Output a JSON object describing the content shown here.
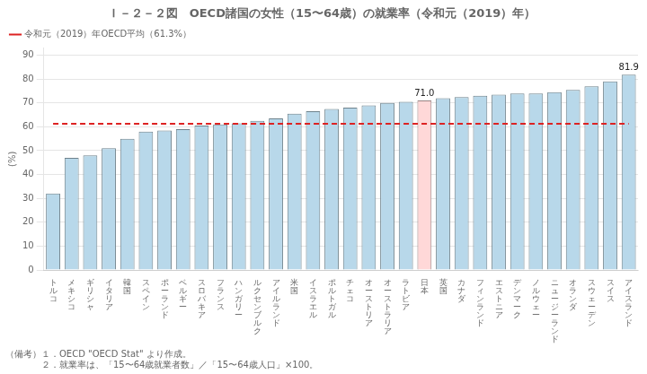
{
  "chart_data": {
    "type": "bar",
    "title": "Ｉ－２－２図　OECD諸国の女性（15〜64歳）の就業率（令和元（2019）年）",
    "ylabel": "(%)",
    "categories": [
      "ト\nル\nコ",
      "メ\nキ\nシ\nコ",
      "ギ\nリ\nシ\nャ",
      "イ\nタ\nリ\nア",
      "韓\n国",
      "ス\nペ\nイ\nン",
      "ポ\nー\nラ\nン\nド",
      "ベ\nル\nギ\nー",
      "ス\nロ\nバ\nキ\nア",
      "フ\nラ\nン\nス",
      "ハ\nン\nガ\nリ\nー",
      "ル\nク\nセ\nン\nブ\nル\nク",
      "ア\nイ\nル\nラ\nン\nド",
      "米\n国",
      "イ\nス\nラ\nエ\nル",
      "ポ\nル\nト\nガ\nル",
      "チ\nェ\nコ",
      "オ\nー\nス\nト\nリ\nア",
      "オ\nー\nス\nト\nラ\nリ\nア",
      "ラ\nト\nビ\nア",
      "日\n本",
      "英\n国",
      "カ\nナ\nダ",
      "フ\nィ\nン\nラ\nン\nド",
      "エ\nス\nト\nニ\nア",
      "デ\nン\nマ\nー\nク",
      "ノ\nル\nウ\nェ\nー",
      "ニ\nュ\nー\nジ\nー\nラ\nン\nド",
      "オ\nラ\nン\nダ",
      "ス\nウ\nェ\nー\nデ\nン",
      "ス\nイ\nス",
      "ア\nイ\nス\nラ\nン\nド"
    ],
    "series": [
      {
        "type": "bar",
        "values": [
          32.0,
          47.0,
          48.0,
          51.0,
          55.0,
          58.0,
          58.5,
          59.0,
          60.5,
          61.0,
          61.5,
          62.5,
          63.5,
          65.5,
          66.5,
          67.5,
          68.0,
          69.0,
          70.0,
          70.5,
          71.0,
          72.0,
          72.5,
          73.0,
          73.5,
          74.0,
          74.0,
          74.5,
          75.5,
          77.0,
          79.0,
          81.9
        ],
        "value_labels": [
          null,
          null,
          null,
          null,
          null,
          null,
          null,
          null,
          null,
          null,
          null,
          null,
          null,
          null,
          null,
          null,
          null,
          null,
          null,
          null,
          "71.0",
          null,
          null,
          null,
          null,
          null,
          null,
          null,
          null,
          null,
          null,
          "81.9"
        ],
        "colors": [
          "#b8d8ea",
          "#b8d8ea",
          "#b8d8ea",
          "#b8d8ea",
          "#b8d8ea",
          "#b8d8ea",
          "#b8d8ea",
          "#b8d8ea",
          "#b8d8ea",
          "#b8d8ea",
          "#b8d8ea",
          "#b8d8ea",
          "#b8d8ea",
          "#b8d8ea",
          "#b8d8ea",
          "#b8d8ea",
          "#b8d8ea",
          "#b8d8ea",
          "#b8d8ea",
          "#b8d8ea",
          "#ffd8d8",
          "#b8d8ea",
          "#b8d8ea",
          "#b8d8ea",
          "#b8d8ea",
          "#b8d8ea",
          "#b8d8ea",
          "#b8d8ea",
          "#b8d8ea",
          "#b8d8ea",
          "#b8d8ea",
          "#b8d8ea"
        ]
      },
      {
        "name": "令和元（2019）年OECD平均（61.3%）",
        "type": "line",
        "color": "#dd2222",
        "line_style": "dashed",
        "values": [
          61.3,
          61.3,
          61.3,
          61.3,
          61.3,
          61.3,
          61.3,
          61.3,
          61.3,
          61.3,
          61.3,
          61.3,
          61.3,
          61.3,
          61.3,
          61.3,
          61.3,
          61.3,
          61.3,
          61.3,
          61.3,
          61.3,
          61.3,
          61.3,
          61.3,
          61.3,
          61.3,
          61.3,
          61.3,
          61.3,
          61.3,
          61.3
        ]
      }
    ],
    "ylim": [
      0,
      93
    ],
    "yticks": [
      0,
      10,
      20,
      30,
      40,
      50,
      60,
      70,
      80,
      90
    ],
    "grid": true,
    "legend": "upper left",
    "notes": [
      "（備考）１．OECD \"OECD Stat\" より作成。",
      "　　　　２．就業率は、「15〜64歳就業者数」／「15〜64歳人口」×100。"
    ]
  }
}
